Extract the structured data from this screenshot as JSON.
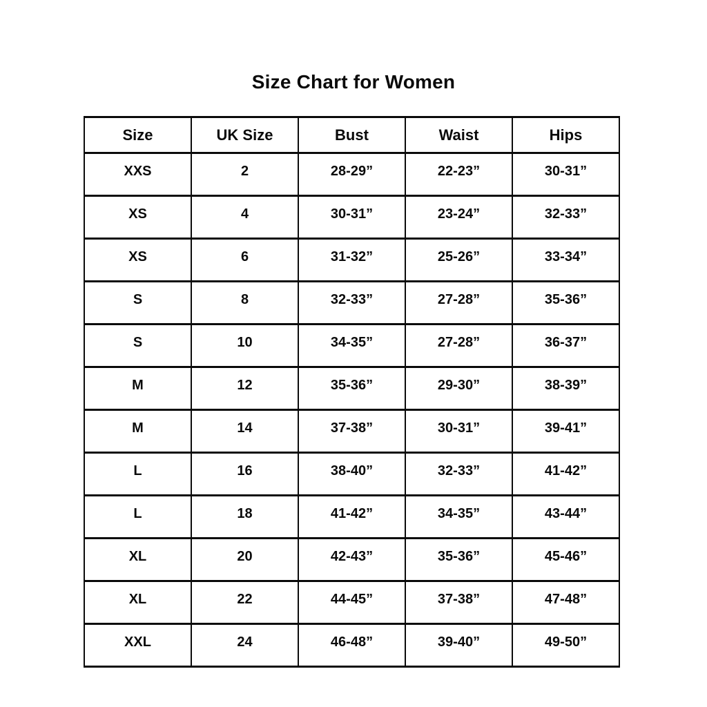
{
  "title": "Size Chart for Women",
  "chart_data": {
    "type": "table",
    "title": "Size Chart for Women",
    "columns": [
      "Size",
      "UK Size",
      "Bust",
      "Waist",
      "Hips"
    ],
    "rows": [
      [
        "XXS",
        "2",
        "28-29”",
        "22-23”",
        "30-31”"
      ],
      [
        "XS",
        "4",
        "30-31”",
        "23-24”",
        "32-33”"
      ],
      [
        "XS",
        "6",
        "31-32”",
        "25-26”",
        "33-34”"
      ],
      [
        "S",
        "8",
        "32-33”",
        "27-28”",
        "35-36”"
      ],
      [
        "S",
        "10",
        "34-35”",
        "27-28”",
        "36-37”"
      ],
      [
        "M",
        "12",
        "35-36”",
        "29-30”",
        "38-39”"
      ],
      [
        "M",
        "14",
        "37-38”",
        "30-31”",
        "39-41”"
      ],
      [
        "L",
        "16",
        "38-40”",
        "32-33”",
        "41-42”"
      ],
      [
        "L",
        "18",
        "41-42”",
        "34-35”",
        "43-44”"
      ],
      [
        "XL",
        "20",
        "42-43”",
        "35-36”",
        "45-46”"
      ],
      [
        "XL",
        "22",
        "44-45”",
        "37-38”",
        "47-48”"
      ],
      [
        "XXL",
        "24",
        "46-48”",
        "39-40”",
        "49-50”"
      ]
    ],
    "colors": {
      "text": "#0a0a0a",
      "border": "#0a0a0a",
      "background": "#ffffff"
    }
  }
}
